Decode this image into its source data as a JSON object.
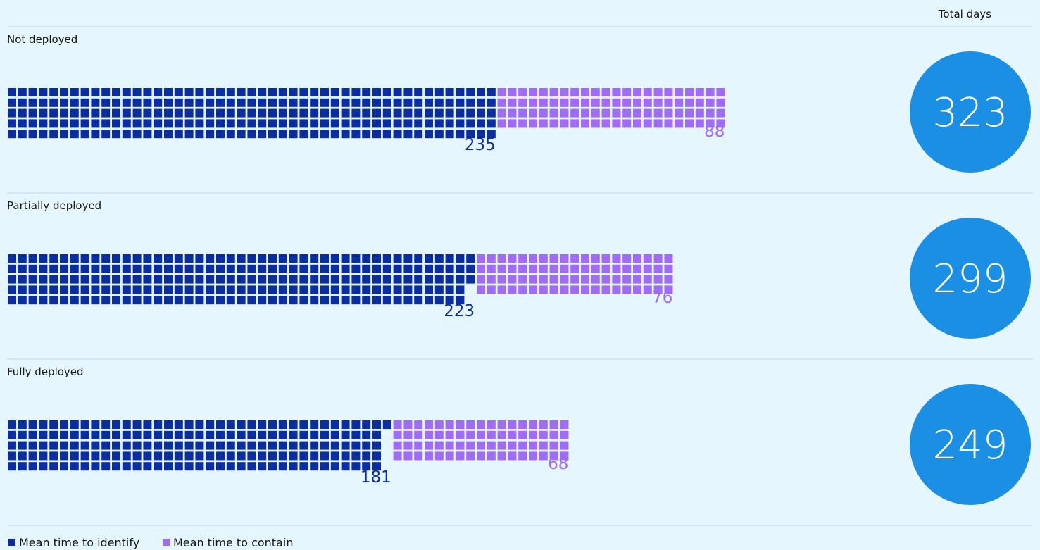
{
  "chart_data": {
    "type": "waffle",
    "unit_per_square": 1,
    "total_header": "Total days",
    "categories": [
      "Not deployed",
      "Partially deployed",
      "Fully deployed"
    ],
    "series": [
      {
        "name": "Mean time to identify",
        "values": [
          235,
          223,
          181
        ],
        "color": "#0a2ea1"
      },
      {
        "name": "Mean time to contain",
        "values": [
          88,
          76,
          68
        ],
        "color": "#a06bf7"
      }
    ],
    "totals": [
      323,
      299,
      249
    ],
    "total_color": "#1a8fe3",
    "legend_position": "bottom-left"
  }
}
